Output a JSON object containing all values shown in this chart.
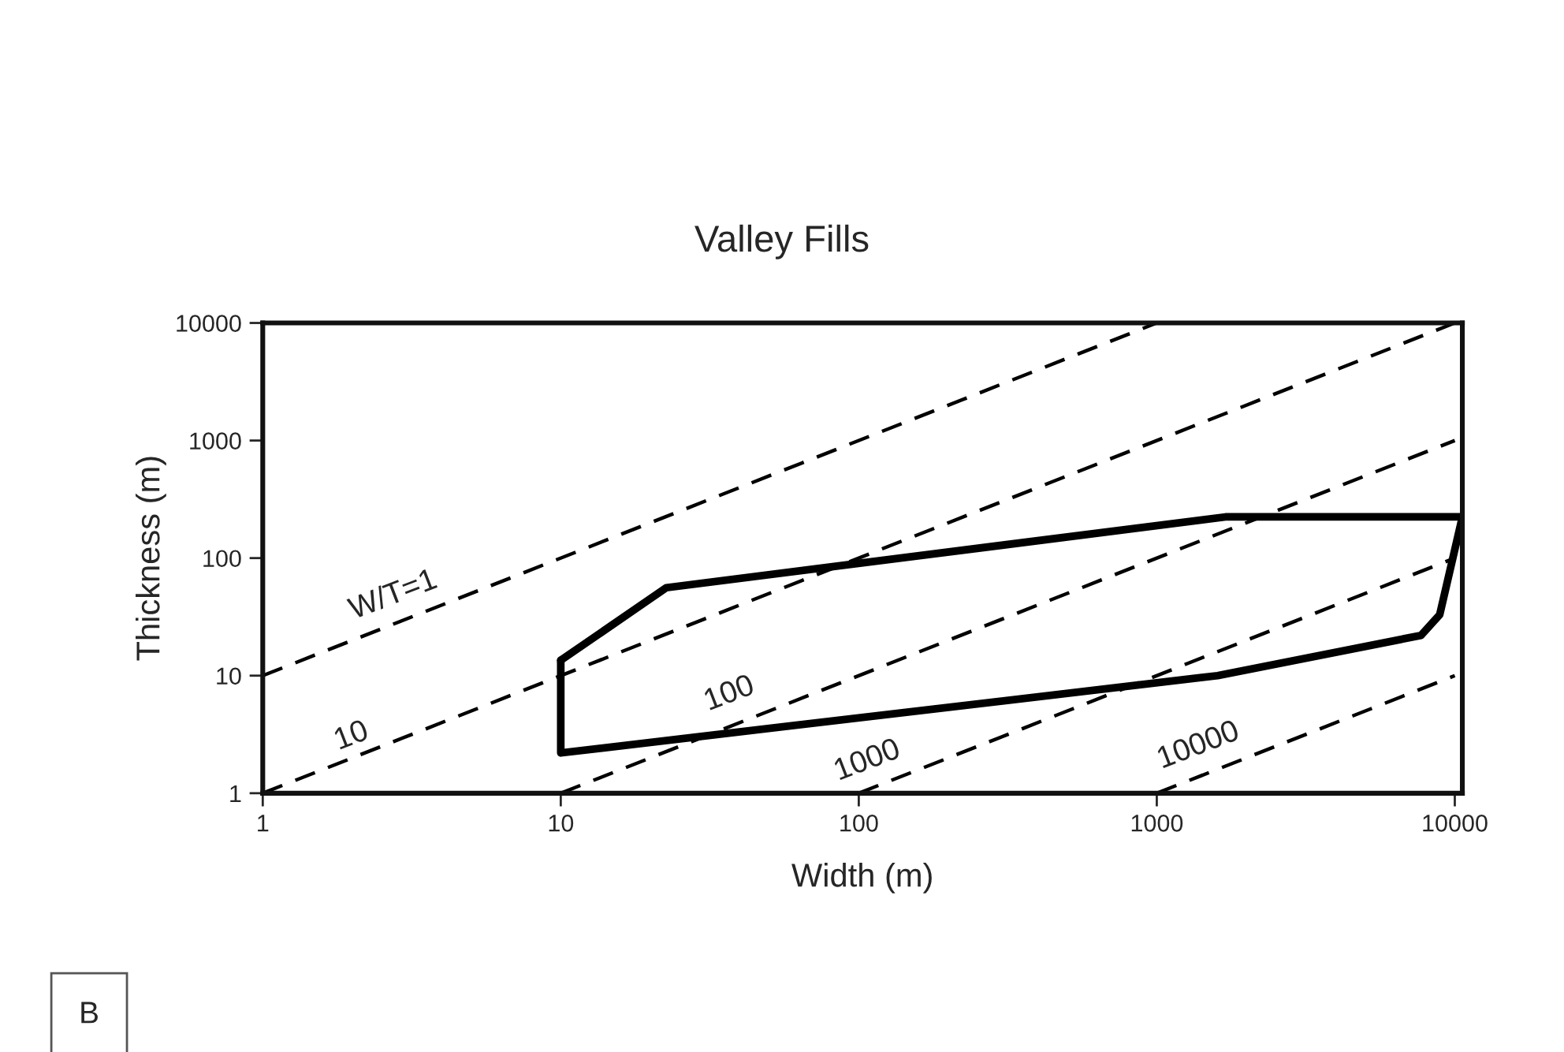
{
  "chart_data": {
    "type": "line",
    "title": "Valley Fills",
    "xlabel": "Width (m)",
    "ylabel": "Thickness (m)",
    "log": "xy",
    "xlim": [
      1,
      10600
    ],
    "ylim": [
      1,
      10000
    ],
    "xticks": [
      1,
      10,
      100,
      1000,
      10000
    ],
    "yticks": [
      1,
      10,
      100,
      1000,
      10000
    ],
    "grid": false,
    "marker": "none",
    "series": [
      {
        "color": "#000000",
        "line_style": "dashed",
        "x": [
          1,
          1000
        ],
        "values": [
          10,
          10000
        ]
      },
      {
        "color": "#000000",
        "line_style": "dashed",
        "x": [
          1,
          10000
        ],
        "values": [
          1,
          10000
        ]
      },
      {
        "color": "#000000",
        "line_style": "dashed",
        "x": [
          10,
          10000
        ],
        "values": [
          1,
          1000
        ]
      },
      {
        "color": "#000000",
        "line_style": "dashed",
        "x": [
          100,
          10000
        ],
        "values": [
          1,
          100
        ]
      },
      {
        "color": "#000000",
        "line_style": "dashed",
        "x": [
          1000,
          10000
        ],
        "values": [
          1,
          10
        ]
      },
      {
        "color": "#000000",
        "line_style": "solid",
        "x": [
          10,
          22.6,
          1700,
          10600
        ],
        "values": [
          13.5,
          56,
          224,
          224
        ]
      },
      {
        "color": "#000000",
        "line_style": "solid",
        "x": [
          10,
          10,
          1600,
          7700,
          8900,
          10600
        ],
        "values": [
          13.5,
          2.2,
          10,
          22,
          33,
          224
        ]
      }
    ],
    "annotations": [
      "W/T=1",
      "10",
      "100",
      "1000",
      "10000",
      "B"
    ]
  }
}
